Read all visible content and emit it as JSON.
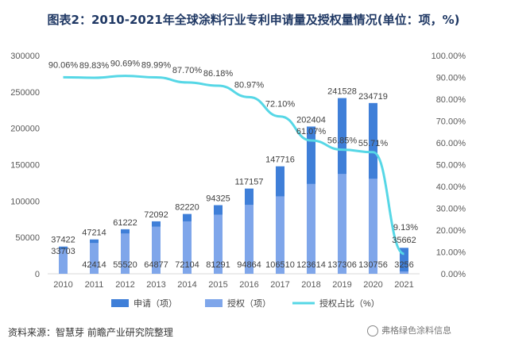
{
  "title": "图表2：2010-2021年全球涂料行业专利申请量及授权量情况(单位：项，%)",
  "source": "资料来源：智慧芽 前瞻产业研究院整理",
  "watermark": "弗格绿色涂料信息",
  "colors": {
    "applications": "#3f7fd8",
    "grants": "#7fa6ea",
    "ratio": "#56d7e6"
  },
  "chart_data": {
    "type": "bar",
    "categories": [
      "2010",
      "2011",
      "2012",
      "2013",
      "2014",
      "2015",
      "2016",
      "2017",
      "2018",
      "2019",
      "2020",
      "2021"
    ],
    "series": [
      {
        "name": "申请（项）",
        "type": "bar",
        "axis": "left",
        "values": [
          37422,
          47214,
          61222,
          72092,
          82220,
          94325,
          117157,
          147716,
          202404,
          241528,
          234719,
          35662
        ]
      },
      {
        "name": "授权（项）",
        "type": "bar",
        "axis": "left",
        "values": [
          33703,
          42414,
          55520,
          64877,
          72104,
          81291,
          94864,
          106510,
          123614,
          137306,
          130756,
          3256
        ]
      },
      {
        "name": "授权占比（%）",
        "type": "line",
        "axis": "right",
        "values": [
          90.06,
          89.83,
          90.69,
          89.99,
          87.7,
          86.18,
          80.97,
          72.1,
          61.07,
          56.85,
          55.71,
          9.13
        ],
        "labels": [
          "90.06%",
          "89.83%",
          "90.69%",
          "89.99%",
          "87.70%",
          "86.18%",
          "80.97%",
          "72.10%",
          "61.07%",
          "56.85%",
          "55.71%",
          "9.13%"
        ]
      }
    ],
    "left_axis": {
      "min": 0,
      "max": 300000,
      "ticks": [
        "0",
        "50000",
        "100000",
        "150000",
        "200000",
        "250000",
        "300000"
      ]
    },
    "right_axis": {
      "min": 0,
      "max": 100,
      "ticks": [
        "0.00%",
        "10.00%",
        "20.00%",
        "30.00%",
        "40.00%",
        "50.00%",
        "60.00%",
        "70.00%",
        "80.00%",
        "90.00%",
        "100.00%"
      ]
    },
    "grid": false,
    "legend": "bottom"
  }
}
